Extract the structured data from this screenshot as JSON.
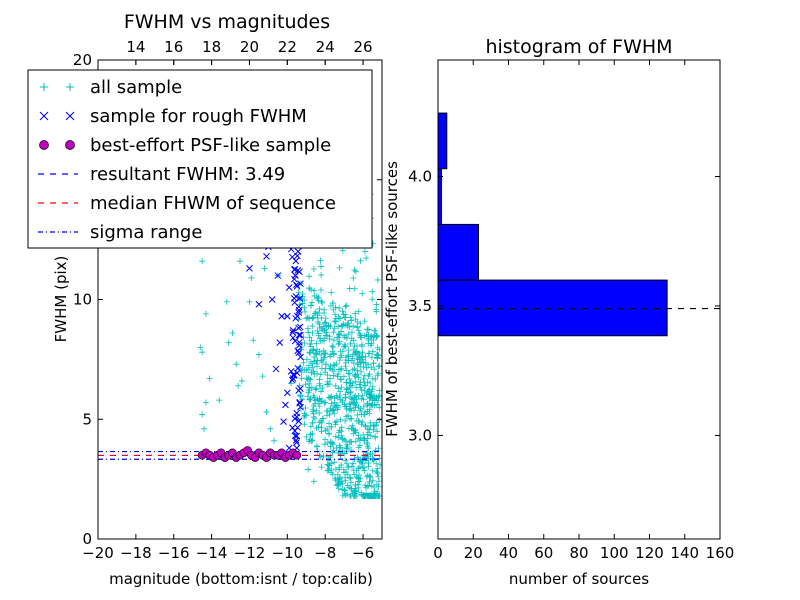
{
  "chart_data": [
    {
      "type": "scatter",
      "title": "FWHM vs magnitudes",
      "xlabel": "magnitude (bottom:isnt / top:calib)",
      "ylabel": "FWHM (pix)",
      "xlim": [
        -20,
        -5
      ],
      "ylim": [
        0,
        20
      ],
      "x_ticks": [
        "−20",
        "−18",
        "−16",
        "−14",
        "−12",
        "−10",
        "−8",
        "−6"
      ],
      "x_tick_values": [
        -20,
        -18,
        -16,
        -14,
        -12,
        -10,
        -8,
        -6
      ],
      "top_x_ticks": [
        "14",
        "16",
        "18",
        "20",
        "22",
        "24",
        "26"
      ],
      "top_x_tick_values": [
        14,
        16,
        18,
        20,
        22,
        24,
        26
      ],
      "top_offset": 32,
      "y_ticks": [
        "0",
        "5",
        "10",
        "15",
        "20"
      ],
      "y_tick_values": [
        0,
        5,
        10,
        15,
        20
      ],
      "grid": false,
      "legend_position": "top-left",
      "legend": [
        {
          "label": "all sample",
          "marker": "+",
          "color": "#00bfbf"
        },
        {
          "label": "sample for rough FWHM",
          "marker": "x",
          "color": "#0000ff"
        },
        {
          "label": "best-effort PSF-like sample",
          "marker": "o",
          "color": "#bf00bf"
        },
        {
          "label": "resultant FWHM: 3.49",
          "marker": "dashed",
          "color": "#0000ff"
        },
        {
          "label": "median FHWM of sequence",
          "marker": "dashed",
          "color": "#ff0000"
        },
        {
          "label": "sigma range",
          "marker": "dashdot",
          "color": "#0000ff"
        }
      ],
      "hlines": [
        {
          "name": "resultant FWHM",
          "y": 3.49,
          "style": "dashed",
          "color": "#0000ff"
        },
        {
          "name": "median FHWM of sequence",
          "y": 3.49,
          "style": "dashed",
          "color": "#ff0000"
        },
        {
          "name": "sigma range upper",
          "y": 3.65,
          "style": "dashdot",
          "color": "#0000ff"
        },
        {
          "name": "sigma range lower",
          "y": 3.33,
          "style": "dashdot",
          "color": "#0000ff"
        }
      ],
      "series": [
        {
          "name": "all sample",
          "marker": "+",
          "color": "#00bfbf",
          "points": [
            [
              -14.4,
              15.4
            ],
            [
              -14.4,
              12.9
            ],
            [
              -14.5,
              11.6
            ],
            [
              -14.3,
              9.4
            ],
            [
              -14.6,
              8.0
            ],
            [
              -14.5,
              7.8
            ],
            [
              -14.1,
              6.7
            ],
            [
              -14.3,
              5.7
            ],
            [
              -14.5,
              5.2
            ],
            [
              -14.4,
              4.6
            ],
            [
              -13.6,
              5.8
            ],
            [
              -13.2,
              9.9
            ],
            [
              -13.1,
              8.2
            ],
            [
              -12.9,
              8.6
            ],
            [
              -12.7,
              7.3
            ],
            [
              -12.6,
              6.4
            ],
            [
              -12.4,
              6.6
            ],
            [
              -12.0,
              9.9
            ],
            [
              -11.8,
              8.3
            ],
            [
              -11.5,
              7.7
            ],
            [
              -11.3,
              6.8
            ],
            [
              -11.1,
              5.3
            ],
            [
              -10.9,
              4.6
            ],
            [
              -10.7,
              4.1
            ],
            [
              -13.0,
              12.6
            ],
            [
              -12.5,
              11.6
            ],
            [
              -11.9,
              10.9
            ],
            [
              -11.2,
              11.3
            ],
            [
              -10.8,
              12.9
            ],
            [
              -10.5,
              11.0
            ],
            [
              -10.2,
              13.6
            ],
            [
              -10.1,
              9.3
            ],
            [
              -9.8,
              6.5
            ],
            [
              -9.6,
              4.4
            ],
            [
              -9.5,
              5.0
            ],
            [
              -9.3,
              6.0
            ],
            [
              -9.2,
              12.6
            ],
            [
              -9.1,
              15.1
            ],
            [
              -9.0,
              17.3
            ],
            [
              -8.6,
              18.6
            ],
            [
              -8.4,
              16.5
            ],
            [
              -8.2,
              19.4
            ],
            [
              -7.8,
              14.6
            ],
            [
              -7.3,
              17.3
            ],
            [
              -6.8,
              13.9
            ],
            [
              -6.5,
              19.0
            ],
            [
              -5.9,
              12.0
            ],
            [
              -5.6,
              14.4
            ],
            [
              -5.3,
              9.5
            ],
            [
              -5.2,
              6.9
            ],
            [
              -8.9,
              2.9
            ],
            [
              -8.6,
              2.4
            ],
            [
              -8.2,
              3.0
            ],
            [
              -7.6,
              2.7
            ],
            [
              -7.3,
              2.3
            ],
            [
              -6.9,
              2.8
            ],
            [
              -6.6,
              2.1
            ],
            [
              -6.2,
              2.4
            ],
            [
              -5.8,
              2.6
            ],
            [
              -5.4,
              2.0
            ],
            [
              -5.2,
              2.6
            ],
            [
              -5.1,
              3.1
            ]
          ]
        },
        {
          "name": "sample for rough FWHM",
          "marker": "x",
          "color": "#0000ff",
          "points": [
            [
              -11.5,
              9.8
            ],
            [
              -11.1,
              11.8
            ],
            [
              -11.0,
              12.2
            ],
            [
              -10.6,
              7.1
            ],
            [
              -10.5,
              11.0
            ],
            [
              -10.4,
              8.2
            ],
            [
              -10.3,
              9.3
            ],
            [
              -10.2,
              4.9
            ],
            [
              -10.1,
              5.6
            ],
            [
              -10.0,
              6.1
            ],
            [
              -10.0,
              9.3
            ],
            [
              -9.9,
              10.5
            ],
            [
              -9.8,
              12.1
            ],
            [
              -9.8,
              7.0
            ],
            [
              -9.7,
              8.4
            ],
            [
              -9.7,
              6.7
            ],
            [
              -9.6,
              12.7
            ],
            [
              -9.6,
              15.3
            ],
            [
              -9.5,
              5.1
            ],
            [
              -9.5,
              4.3
            ],
            [
              -9.4,
              9.7
            ],
            [
              -9.4,
              6.2
            ],
            [
              -9.3,
              13.5
            ],
            [
              -9.3,
              7.6
            ],
            [
              -12.0,
              11.3
            ],
            [
              -10.8,
              10.0
            ],
            [
              -10.3,
              13.2
            ],
            [
              -10.1,
              14.4
            ],
            [
              -9.9,
              3.8
            ],
            [
              -9.5,
              3.8
            ]
          ]
        },
        {
          "name": "best-effort PSF-like sample",
          "marker": "o",
          "color": "#bf00bf",
          "points": [
            [
              -14.5,
              3.5
            ],
            [
              -14.3,
              3.6
            ],
            [
              -14.1,
              3.5
            ],
            [
              -13.9,
              3.4
            ],
            [
              -13.7,
              3.5
            ],
            [
              -13.5,
              3.6
            ],
            [
              -13.3,
              3.4
            ],
            [
              -13.1,
              3.5
            ],
            [
              -12.9,
              3.6
            ],
            [
              -12.7,
              3.4
            ],
            [
              -12.5,
              3.5
            ],
            [
              -12.3,
              3.6
            ],
            [
              -12.1,
              3.7
            ],
            [
              -11.9,
              3.5
            ],
            [
              -11.7,
              3.4
            ],
            [
              -11.5,
              3.6
            ],
            [
              -11.3,
              3.5
            ],
            [
              -11.1,
              3.4
            ],
            [
              -10.9,
              3.6
            ],
            [
              -10.7,
              3.5
            ],
            [
              -10.5,
              3.5
            ],
            [
              -10.3,
              3.6
            ],
            [
              -10.1,
              3.4
            ],
            [
              -9.9,
              3.5
            ],
            [
              -9.7,
              3.6
            ],
            [
              -9.5,
              3.5
            ]
          ]
        }
      ]
    },
    {
      "type": "bar",
      "orientation": "horizontal",
      "title": "histogram of FWHM",
      "xlabel": "number of sources",
      "ylabel": "FWHM of best-effort PSF-like sources",
      "xlim": [
        0,
        160
      ],
      "ylim": [
        2.6,
        4.45
      ],
      "x_ticks": [
        "0",
        "20",
        "40",
        "60",
        "80",
        "100",
        "120",
        "140",
        "160"
      ],
      "x_tick_values": [
        0,
        20,
        40,
        60,
        80,
        100,
        120,
        140,
        160
      ],
      "y_ticks": [
        "3.0",
        "3.5",
        "4.0"
      ],
      "y_tick_values": [
        3.0,
        3.5,
        4.0
      ],
      "grid": false,
      "bar_color": "#0000ff",
      "bins": [
        {
          "y0": 3.385,
          "y1": 3.6,
          "count": 130
        },
        {
          "y0": 3.6,
          "y1": 3.815,
          "count": 23
        },
        {
          "y0": 3.815,
          "y1": 4.03,
          "count": 2
        },
        {
          "y0": 4.03,
          "y1": 4.245,
          "count": 5
        }
      ],
      "hline": {
        "y": 3.49,
        "style": "dashed",
        "color": "#000000"
      }
    }
  ]
}
